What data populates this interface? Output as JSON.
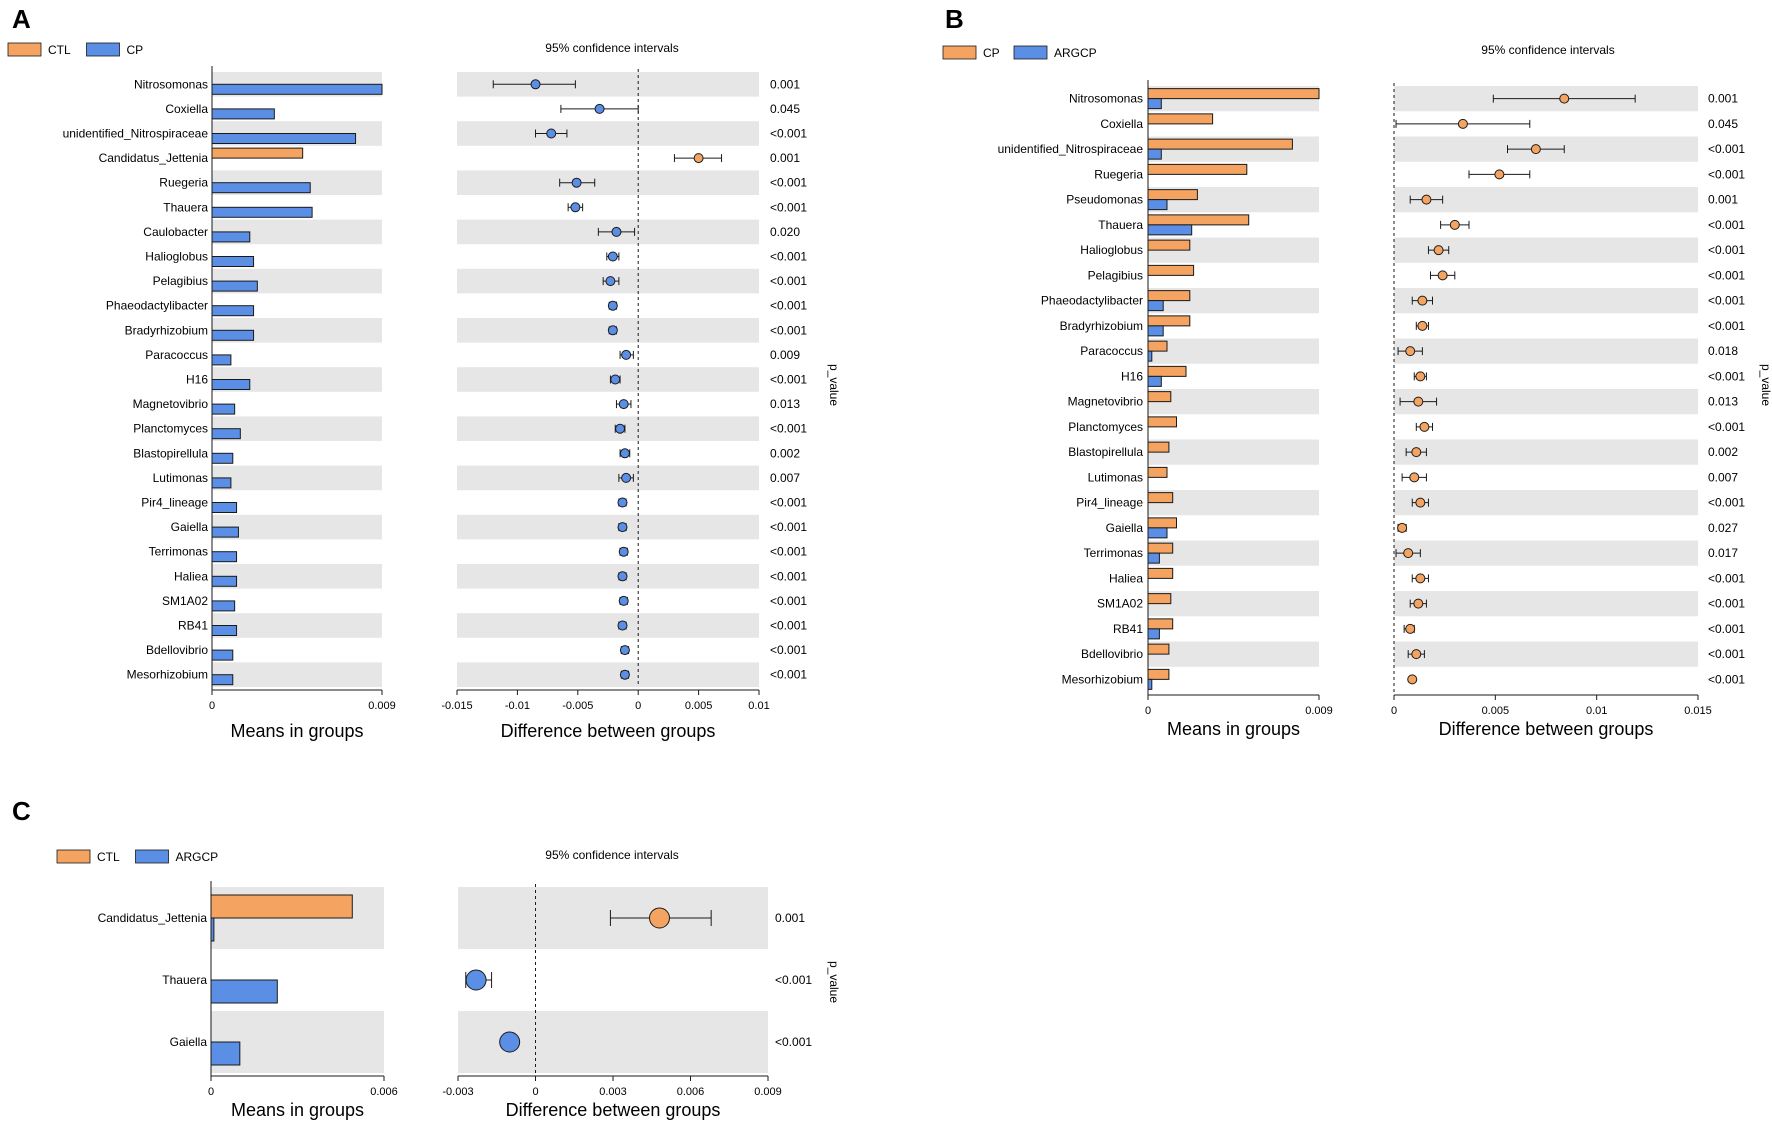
{
  "colors": {
    "orange": "#F4A460",
    "blue": "#5B8FE6",
    "band": "#E6E6E6",
    "stroke": "#1a1a1a"
  },
  "chart_data": [
    {
      "panel": "A",
      "type": "bar",
      "legend": [
        "CTL",
        "CP"
      ],
      "ci_title": "95% confidence intervals",
      "xlabel_left": "Means in groups",
      "xlabel_right": "Difference between groups",
      "pvalue_label": "p_value",
      "means_xlim": [
        0,
        0.009
      ],
      "means_ticks": [
        "0",
        "0.009"
      ],
      "diff_xlim": [
        -0.015,
        0.01
      ],
      "diff_ticks": [
        -0.015,
        -0.01,
        -0.005,
        0,
        0.005,
        0.01
      ],
      "diff_tick_labels": [
        "-0.015",
        "-0.01",
        "-0.005",
        "0",
        "0.005",
        "0.01"
      ],
      "categories": [
        "Nitrosomonas",
        "Coxiella",
        "unidentified_Nitrospiraceae",
        "Candidatus_Jettenia",
        "Ruegeria",
        "Thauera",
        "Caulobacter",
        "Halioglobus",
        "Pelagibius",
        "Phaeodactylibacter",
        "Bradyrhizobium",
        "Paracoccus",
        "H16",
        "Magnetovibrio",
        "Planctomyces",
        "Blastopirellula",
        "Lutimonas",
        "Pir4_lineage",
        "Gaiella",
        "Terrimonas",
        "Haliea",
        "SM1A02",
        "RB41",
        "Bdellovibrio",
        "Mesorhizobium"
      ],
      "series": [
        {
          "name": "CTL",
          "values": [
            0,
            0,
            0,
            0.0048,
            0,
            0,
            0,
            0,
            0,
            0,
            0,
            0,
            0,
            0,
            0,
            0,
            0,
            0,
            0,
            0,
            0,
            0,
            0,
            0,
            0
          ]
        },
        {
          "name": "CP",
          "values": [
            0.009,
            0.0033,
            0.0076,
            0,
            0.0052,
            0.0053,
            0.002,
            0.0022,
            0.0024,
            0.0022,
            0.0022,
            0.001,
            0.002,
            0.0012,
            0.0015,
            0.0011,
            0.001,
            0.0013,
            0.0014,
            0.0013,
            0.0013,
            0.0012,
            0.0013,
            0.0011,
            0.0011
          ]
        }
      ],
      "diff": [
        -0.0085,
        -0.0032,
        -0.0072,
        0.005,
        -0.0051,
        -0.0052,
        -0.0018,
        -0.0021,
        -0.0023,
        -0.0021,
        -0.0021,
        -0.001,
        -0.0019,
        -0.0012,
        -0.0015,
        -0.0011,
        -0.001,
        -0.0013,
        -0.0013,
        -0.0012,
        -0.0013,
        -0.0012,
        -0.0013,
        -0.0011,
        -0.0011
      ],
      "ci_low": [
        -0.012,
        -0.0064,
        -0.0085,
        0.003,
        -0.0065,
        -0.0058,
        -0.0033,
        -0.0026,
        -0.0029,
        -0.0024,
        -0.0024,
        -0.0015,
        -0.0023,
        -0.0018,
        -0.0019,
        -0.0015,
        -0.0016,
        -0.0016,
        -0.0016,
        -0.0015,
        -0.0016,
        -0.0015,
        -0.0016,
        -0.0014,
        -0.0014
      ],
      "ci_high": [
        -0.0052,
        0,
        -0.0059,
        0.0069,
        -0.0036,
        -0.0046,
        -0.0003,
        -0.0016,
        -0.0016,
        -0.0018,
        -0.0018,
        -0.0004,
        -0.0015,
        -0.0006,
        -0.0011,
        -0.0007,
        -0.0004,
        -0.001,
        -0.001,
        -0.0009,
        -0.001,
        -0.0009,
        -0.001,
        -0.0008,
        -0.0008
      ],
      "pvalues": [
        "0.001",
        "0.045",
        "<0.001",
        "0.001",
        "<0.001",
        "<0.001",
        "0.020",
        "<0.001",
        "<0.001",
        "<0.001",
        "<0.001",
        "0.009",
        "<0.001",
        "0.013",
        "<0.001",
        "0.002",
        "0.007",
        "<0.001",
        "<0.001",
        "<0.001",
        "<0.001",
        "<0.001",
        "<0.001",
        "<0.001",
        "<0.001"
      ]
    },
    {
      "panel": "B",
      "type": "bar",
      "legend": [
        "CP",
        "ARGCP"
      ],
      "ci_title": "95% confidence intervals",
      "xlabel_left": "Means in groups",
      "xlabel_right": "Difference between groups",
      "pvalue_label": "p_value",
      "means_xlim": [
        0,
        0.009
      ],
      "means_ticks": [
        "0",
        "0.009"
      ],
      "diff_xlim": [
        0,
        0.015
      ],
      "diff_ticks": [
        0,
        0.005,
        0.01,
        0.015
      ],
      "diff_tick_labels": [
        "0",
        "0.005",
        "0.01",
        "0.015"
      ],
      "categories": [
        "Nitrosomonas",
        "Coxiella",
        "unidentified_Nitrospiraceae",
        "Ruegeria",
        "Pseudomonas",
        "Thauera",
        "Halioglobus",
        "Pelagibius",
        "Phaeodactylibacter",
        "Bradyrhizobium",
        "Paracoccus",
        "H16",
        "Magnetovibrio",
        "Planctomyces",
        "Blastopirellula",
        "Lutimonas",
        "Pir4_lineage",
        "Gaiella",
        "Terrimonas",
        "Haliea",
        "SM1A02",
        "RB41",
        "Bdellovibrio",
        "Mesorhizobium"
      ],
      "series": [
        {
          "name": "CP",
          "values": [
            0.009,
            0.0034,
            0.0076,
            0.0052,
            0.0026,
            0.0053,
            0.0022,
            0.0024,
            0.0022,
            0.0022,
            0.001,
            0.002,
            0.0012,
            0.0015,
            0.0011,
            0.001,
            0.0013,
            0.0015,
            0.0013,
            0.0013,
            0.0012,
            0.0013,
            0.0011,
            0.0011
          ]
        },
        {
          "name": "ARGCP",
          "values": [
            0.0007,
            0,
            0.0007,
            0,
            0.001,
            0.0023,
            0,
            0,
            0.0008,
            0.0008,
            0.0002,
            0.0007,
            0,
            0,
            0,
            0,
            0,
            0.001,
            0.0006,
            0,
            0,
            0.0006,
            0,
            0.0002
          ]
        }
      ],
      "diff": [
        0.0084,
        0.0034,
        0.007,
        0.0052,
        0.0016,
        0.003,
        0.0022,
        0.0024,
        0.0014,
        0.0014,
        0.0008,
        0.0013,
        0.0012,
        0.0015,
        0.0011,
        0.001,
        0.0013,
        0.0004,
        0.0007,
        0.0013,
        0.0012,
        0.0008,
        0.0011,
        0.0009
      ],
      "ci_low": [
        0.0049,
        0.0001,
        0.0056,
        0.0037,
        0.0008,
        0.0023,
        0.0017,
        0.0018,
        0.0009,
        0.0011,
        0.0002,
        0.001,
        0.0003,
        0.0011,
        0.0006,
        0.0004,
        0.0009,
        0.0002,
        0.0001,
        0.0009,
        0.0008,
        0.0005,
        0.0007,
        0.0009
      ],
      "ci_high": [
        0.0119,
        0.0067,
        0.0084,
        0.0067,
        0.0024,
        0.0037,
        0.0027,
        0.003,
        0.0019,
        0.0017,
        0.0014,
        0.0016,
        0.0021,
        0.0019,
        0.0016,
        0.0016,
        0.0017,
        0.0006,
        0.0013,
        0.0017,
        0.0016,
        0.001,
        0.0015,
        0.0009
      ],
      "pvalues": [
        "0.001",
        "0.045",
        "<0.001",
        "<0.001",
        "0.001",
        "<0.001",
        "<0.001",
        "<0.001",
        "<0.001",
        "<0.001",
        "0.018",
        "<0.001",
        "0.013",
        "<0.001",
        "0.002",
        "0.007",
        "<0.001",
        "0.027",
        "0.017",
        "<0.001",
        "<0.001",
        "<0.001",
        "<0.001",
        "<0.001"
      ]
    },
    {
      "panel": "C",
      "type": "bar",
      "legend": [
        "CTL",
        "ARGCP"
      ],
      "ci_title": "95% confidence intervals",
      "xlabel_left": "Means in groups",
      "xlabel_right": "Difference between groups",
      "pvalue_label": "p_value",
      "means_xlim": [
        0,
        0.006
      ],
      "means_ticks": [
        "0",
        "0.006"
      ],
      "diff_xlim": [
        -0.003,
        0.009
      ],
      "diff_ticks": [
        -0.003,
        0,
        0.003,
        0.006,
        0.009
      ],
      "diff_tick_labels": [
        "-0.003",
        "0",
        "0.003",
        "0.006",
        "0.009"
      ],
      "categories": [
        "Candidatus_Jettenia",
        "Thauera",
        "Gaiella"
      ],
      "series": [
        {
          "name": "CTL",
          "values": [
            0.0049,
            0,
            0
          ]
        },
        {
          "name": "ARGCP",
          "values": [
            0.0001,
            0.0023,
            0.001
          ]
        }
      ],
      "diff": [
        0.0048,
        -0.0023,
        -0.001
      ],
      "ci_low": [
        0.0029,
        -0.0027,
        -0.001
      ],
      "ci_high": [
        0.0068,
        -0.0017,
        -0.001
      ],
      "pvalues": [
        "0.001",
        "<0.001",
        "<0.001"
      ]
    }
  ]
}
